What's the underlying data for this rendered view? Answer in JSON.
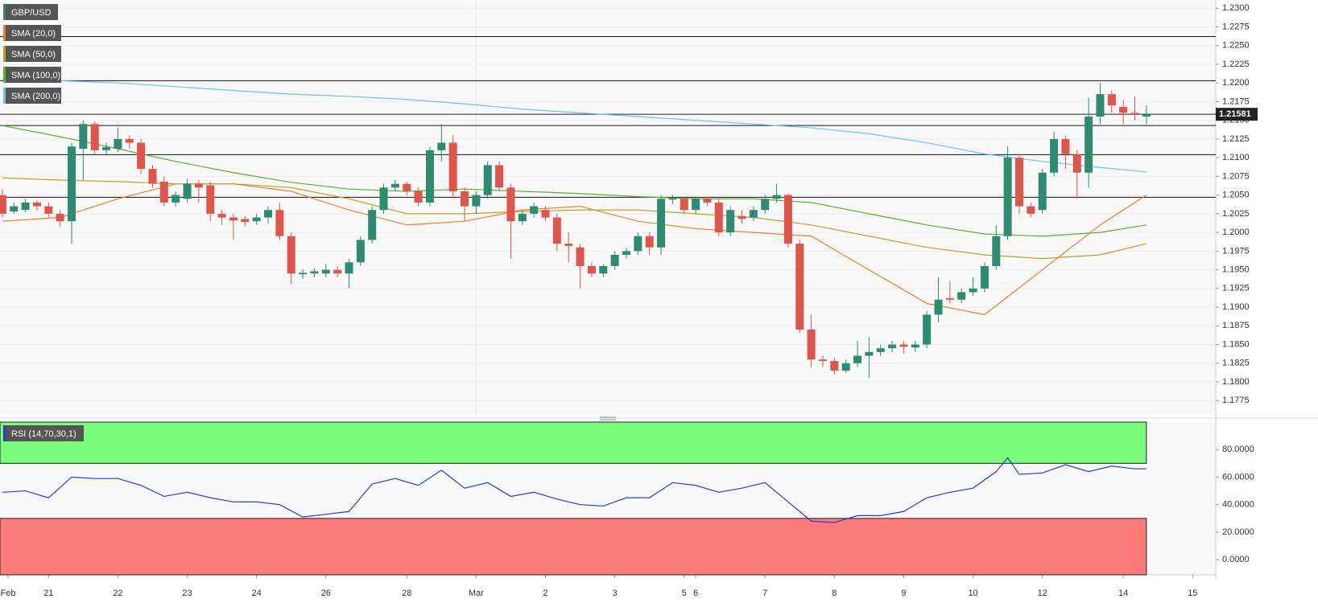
{
  "chart_data": {
    "type": "candlestick",
    "title": "GBP/USD",
    "up_color": "#2e8a70",
    "down_color": "#e0554b",
    "x": [
      0,
      1,
      2,
      3,
      4,
      5,
      6,
      7,
      8,
      9,
      10,
      11,
      12,
      13,
      14,
      15,
      16,
      17,
      18,
      19,
      20,
      21,
      22,
      23,
      24,
      25,
      26,
      27,
      28,
      29,
      30,
      31,
      32,
      33,
      34,
      35,
      36,
      37,
      38,
      39,
      40,
      41,
      42,
      43,
      44,
      45,
      46,
      47,
      48,
      49,
      50,
      51,
      52,
      53,
      54,
      55,
      56,
      57,
      58,
      59,
      60,
      61,
      62,
      63,
      64,
      65,
      66,
      67,
      68,
      69,
      70,
      71,
      72,
      73,
      74,
      75,
      76,
      77,
      78,
      79,
      80,
      81,
      82,
      83,
      84,
      85,
      86,
      87,
      88,
      89,
      90,
      91,
      92,
      93,
      94,
      95,
      96,
      97,
      98,
      99
    ],
    "open": [
      1.205,
      1.2028,
      1.203,
      1.204,
      1.2035,
      1.2025,
      1.2015,
      1.2112,
      1.2145,
      1.211,
      1.2112,
      1.2125,
      1.212,
      1.2085,
      1.2068,
      1.204,
      1.2045,
      1.2065,
      1.2063,
      1.2025,
      1.202,
      1.2018,
      1.2015,
      1.202,
      1.203,
      1.1995,
      1.1944,
      1.1945,
      1.1945,
      1.195,
      1.1945,
      1.196,
      1.199,
      1.203,
      1.206,
      1.2065,
      1.2055,
      1.204,
      1.211,
      1.212,
      1.2055,
      1.2035,
      1.205,
      1.209,
      1.206,
      1.2015,
      1.2025,
      1.203,
      1.202,
      1.1985,
      1.198,
      1.1955,
      1.1945,
      1.1955,
      1.197,
      1.1975,
      1.1995,
      1.198,
      1.2044,
      1.2045,
      1.203,
      1.2045,
      1.204,
      1.2,
      1.2022,
      1.202,
      1.203,
      1.2045,
      1.205,
      1.1985,
      1.187,
      1.183,
      1.1828,
      1.1815,
      1.1825,
      1.1835,
      1.184,
      1.1845,
      1.185,
      1.1846,
      1.185,
      1.189,
      1.1912,
      1.191,
      1.192,
      1.1925,
      1.1955,
      1.1995,
      1.21,
      1.2035,
      1.203,
      1.208,
      1.2125,
      1.2105,
      1.208,
      1.2155,
      1.2185,
      1.2168,
      1.216,
      1.2155
    ],
    "high": [
      1.2058,
      1.204,
      1.2045,
      1.2043,
      1.204,
      1.203,
      1.212,
      1.215,
      1.2148,
      1.212,
      1.214,
      1.213,
      1.2125,
      1.209,
      1.2075,
      1.2055,
      1.2072,
      1.207,
      1.2068,
      1.203,
      1.2025,
      1.2022,
      1.2025,
      1.2035,
      1.204,
      1.2,
      1.195,
      1.1952,
      1.1958,
      1.1955,
      1.1965,
      1.1995,
      1.2035,
      1.2065,
      1.207,
      1.2068,
      1.206,
      1.2115,
      1.2145,
      1.213,
      1.206,
      1.2055,
      1.2095,
      1.2095,
      1.2065,
      1.203,
      1.204,
      1.2035,
      1.2025,
      1.2,
      1.1985,
      1.196,
      1.1958,
      1.1975,
      1.198,
      1.2,
      1.2,
      1.205,
      1.205,
      1.2048,
      1.2048,
      1.2048,
      1.2045,
      1.2035,
      1.203,
      1.2035,
      1.205,
      1.2065,
      1.2052,
      1.199,
      1.189,
      1.1835,
      1.1832,
      1.183,
      1.1855,
      1.186,
      1.185,
      1.1855,
      1.1855,
      1.1855,
      1.1895,
      1.194,
      1.1935,
      1.1925,
      1.194,
      1.196,
      1.201,
      1.2115,
      1.2105,
      1.204,
      1.2085,
      1.2135,
      1.213,
      1.211,
      1.218,
      1.22,
      1.219,
      1.2178,
      1.2182,
      1.217
    ],
    "low": [
      1.202,
      1.2025,
      1.2027,
      1.203,
      1.202,
      1.2008,
      1.1985,
      1.207,
      1.2105,
      1.2105,
      1.2108,
      1.2112,
      1.2078,
      1.206,
      1.2035,
      1.2035,
      1.204,
      1.204,
      1.2015,
      1.201,
      1.199,
      1.2008,
      1.201,
      1.2012,
      1.199,
      1.193,
      1.1938,
      1.194,
      1.194,
      1.194,
      1.1925,
      1.1955,
      1.1985,
      1.2025,
      1.2055,
      1.205,
      1.2035,
      1.2035,
      1.2095,
      1.2045,
      1.2015,
      1.2025,
      1.2045,
      1.2055,
      1.1965,
      1.201,
      1.202,
      1.2015,
      1.1975,
      1.196,
      1.1925,
      1.194,
      1.194,
      1.195,
      1.1965,
      1.197,
      1.197,
      1.197,
      1.2038,
      1.2025,
      1.2025,
      1.2035,
      1.1995,
      1.1995,
      1.2012,
      1.2015,
      1.2025,
      1.204,
      1.198,
      1.1865,
      1.182,
      1.182,
      1.181,
      1.1812,
      1.182,
      1.1805,
      1.1835,
      1.184,
      1.1838,
      1.184,
      1.1845,
      1.188,
      1.1905,
      1.1905,
      1.1915,
      1.192,
      1.195,
      1.199,
      1.2025,
      1.202,
      1.2025,
      1.2075,
      1.2085,
      1.2045,
      1.206,
      1.2145,
      1.216,
      1.2145,
      1.215,
      1.2145
    ],
    "close": [
      1.2025,
      1.2035,
      1.204,
      1.2035,
      1.2025,
      1.2015,
      1.2115,
      1.2145,
      1.211,
      1.2114,
      1.2125,
      1.212,
      1.2085,
      1.2065,
      1.204,
      1.205,
      1.2065,
      1.206,
      1.2025,
      1.202,
      1.2016,
      1.2014,
      1.202,
      1.203,
      1.1995,
      1.1945,
      1.1946,
      1.1948,
      1.195,
      1.1945,
      1.196,
      1.199,
      1.203,
      1.206,
      1.2065,
      1.2055,
      1.204,
      1.211,
      1.212,
      1.2055,
      1.2035,
      1.205,
      1.209,
      1.206,
      1.2015,
      1.2025,
      1.2035,
      1.202,
      1.1985,
      1.1982,
      1.1955,
      1.1945,
      1.1955,
      1.197,
      1.1975,
      1.1995,
      1.198,
      1.2045,
      1.2046,
      1.203,
      1.2045,
      1.204,
      1.2,
      1.203,
      1.2018,
      1.203,
      1.2045,
      1.205,
      1.1985,
      1.187,
      1.183,
      1.1828,
      1.1815,
      1.1825,
      1.1835,
      1.184,
      1.1845,
      1.185,
      1.1847,
      1.185,
      1.189,
      1.191,
      1.191,
      1.192,
      1.1925,
      1.1955,
      1.1995,
      1.21,
      1.2035,
      1.2025,
      1.208,
      1.2125,
      1.2105,
      1.208,
      1.2155,
      1.2185,
      1.217,
      1.216,
      1.2158,
      1.2158
    ],
    "xlim": [
      -0.2,
      105
    ],
    "xticks": [
      {
        "value": 0.5,
        "label": "Feb"
      },
      {
        "value": 4,
        "label": "21"
      },
      {
        "value": 10,
        "label": "22"
      },
      {
        "value": 16,
        "label": "23"
      },
      {
        "value": 22,
        "label": "24"
      },
      {
        "value": 28,
        "label": "26"
      },
      {
        "value": 35,
        "label": "28"
      },
      {
        "value": 41,
        "label": "Mar"
      },
      {
        "value": 47,
        "label": "2"
      },
      {
        "value": 53,
        "label": "3"
      },
      {
        "value": 59,
        "label": "5"
      },
      {
        "value": 60,
        "label": "6"
      },
      {
        "value": 66,
        "label": "7"
      },
      {
        "value": 72,
        "label": "8"
      },
      {
        "value": 78,
        "label": "9"
      },
      {
        "value": 84,
        "label": "10"
      },
      {
        "value": 90,
        "label": "12"
      },
      {
        "value": 97,
        "label": "14"
      },
      {
        "value": 103,
        "label": "15"
      }
    ],
    "ylim": [
      1.1757,
      1.2311
    ],
    "yticks": [
      {
        "value": 1.1775,
        "label": "1.1775"
      },
      {
        "value": 1.18,
        "label": "1.1800"
      },
      {
        "value": 1.1825,
        "label": "1.1825"
      },
      {
        "value": 1.185,
        "label": "1.1850"
      },
      {
        "value": 1.1875,
        "label": "1.1875"
      },
      {
        "value": 1.19,
        "label": "1.1900"
      },
      {
        "value": 1.1925,
        "label": "1.1925"
      },
      {
        "value": 1.195,
        "label": "1.1950"
      },
      {
        "value": 1.1975,
        "label": "1.1975"
      },
      {
        "value": 1.2,
        "label": "1.2000"
      },
      {
        "value": 1.2025,
        "label": "1.2025"
      },
      {
        "value": 1.205,
        "label": "1.2050"
      },
      {
        "value": 1.2075,
        "label": "1.2075"
      },
      {
        "value": 1.21,
        "label": "1.2100"
      },
      {
        "value": 1.2125,
        "label": "1.2125"
      },
      {
        "value": 1.215,
        "label": "1.2150"
      },
      {
        "value": 1.2175,
        "label": "1.2175"
      },
      {
        "value": 1.22,
        "label": "1.2200"
      },
      {
        "value": 1.2225,
        "label": "1.2225"
      },
      {
        "value": 1.225,
        "label": "1.2250"
      },
      {
        "value": 1.2275,
        "label": "1.2275"
      },
      {
        "value": 1.23,
        "label": "1.2300"
      }
    ],
    "levels": [
      1.2262,
      1.2203,
      1.2143,
      1.2104,
      1.2047
    ],
    "last_price": 1.21581,
    "overlays": [
      {
        "name": "SMA (20,0)",
        "color": "#f07d2c",
        "x": [
          0,
          5,
          10,
          15,
          20,
          25,
          30,
          35,
          40,
          45,
          50,
          55,
          60,
          65,
          70,
          75,
          80,
          85,
          90,
          95,
          99
        ],
        "values": [
          1.2015,
          1.202,
          1.2045,
          1.2065,
          1.2065,
          1.2055,
          1.203,
          1.201,
          1.2015,
          1.203,
          1.2035,
          1.2015,
          1.2005,
          1.2,
          1.1995,
          1.195,
          1.1905,
          1.189,
          1.195,
          1.201,
          1.205
        ]
      },
      {
        "name": "SMA (50,0)",
        "color": "#b8a424",
        "x": [
          0,
          5,
          10,
          15,
          20,
          25,
          30,
          35,
          40,
          45,
          50,
          55,
          60,
          65,
          70,
          75,
          80,
          85,
          90,
          95,
          99
        ],
        "values": [
          1.2073,
          1.207,
          1.2068,
          1.2065,
          1.2065,
          1.206,
          1.2045,
          1.2025,
          1.2025,
          1.2028,
          1.203,
          1.203,
          1.2025,
          1.202,
          1.201,
          1.1995,
          1.198,
          1.197,
          1.1965,
          1.197,
          1.1985
        ]
      },
      {
        "name": "SMA (100,0)",
        "color": "#5cb02c",
        "x": [
          0,
          5,
          10,
          15,
          20,
          25,
          30,
          35,
          40,
          45,
          50,
          55,
          60,
          65,
          70,
          75,
          80,
          85,
          90,
          95,
          99
        ],
        "values": [
          1.2143,
          1.2128,
          1.2112,
          1.2095,
          1.208,
          1.2067,
          1.2058,
          1.2055,
          1.2058,
          1.2055,
          1.2052,
          1.2048,
          1.2045,
          1.2045,
          1.204,
          1.2025,
          1.201,
          1.1998,
          1.1995,
          1.2,
          1.201
        ]
      },
      {
        "name": "SMA (200,0)",
        "color": "#6ec0f0",
        "x": [
          0,
          5,
          10,
          15,
          20,
          25,
          30,
          35,
          40,
          45,
          50,
          55,
          60,
          65,
          70,
          75,
          80,
          85,
          90,
          95,
          99
        ],
        "values": [
          1.2205,
          1.2203,
          1.22,
          1.2195,
          1.219,
          1.2185,
          1.2182,
          1.2178,
          1.2172,
          1.2165,
          1.216,
          1.2155,
          1.215,
          1.2145,
          1.214,
          1.2132,
          1.212,
          1.2105,
          1.2095,
          1.2087,
          1.2081
        ]
      }
    ],
    "indicator": {
      "type": "line",
      "name": "RSI (14,70,30,1)",
      "color": "#2a3cd0",
      "x": [
        0,
        2,
        4,
        6,
        8,
        10,
        12,
        14,
        16,
        18,
        20,
        22,
        24,
        26,
        28,
        30,
        32,
        34,
        36,
        38,
        40,
        42,
        44,
        46,
        48,
        50,
        52,
        54,
        56,
        58,
        60,
        62,
        64,
        66,
        68,
        70,
        72,
        74,
        76,
        78,
        80,
        82,
        84,
        86,
        87,
        88,
        90,
        92,
        94,
        96,
        98,
        99
      ],
      "values": [
        49,
        50,
        45,
        60,
        59,
        59,
        54,
        46,
        49,
        45,
        42,
        42,
        40,
        31,
        33,
        35,
        55,
        59,
        54,
        65,
        52,
        56,
        46,
        49,
        44,
        40,
        39,
        45,
        45,
        56,
        54,
        49,
        52,
        56,
        42,
        28,
        27,
        32,
        32,
        35,
        45,
        49,
        52,
        64,
        74,
        62,
        63,
        69,
        64,
        68,
        66,
        66
      ],
      "ylim": [
        -11,
        100
      ],
      "yticks": [
        {
          "value": 0,
          "label": "0.0000"
        },
        {
          "value": 20,
          "label": "20.0000"
        },
        {
          "value": 40,
          "label": "40.0000"
        },
        {
          "value": 60,
          "label": "60.0000"
        },
        {
          "value": 80,
          "label": "80.0000"
        }
      ],
      "overbought": 70,
      "oversold": 30,
      "overbought_color": "#7cfc7c",
      "oversold_color": "#fb7b7b"
    }
  }
}
